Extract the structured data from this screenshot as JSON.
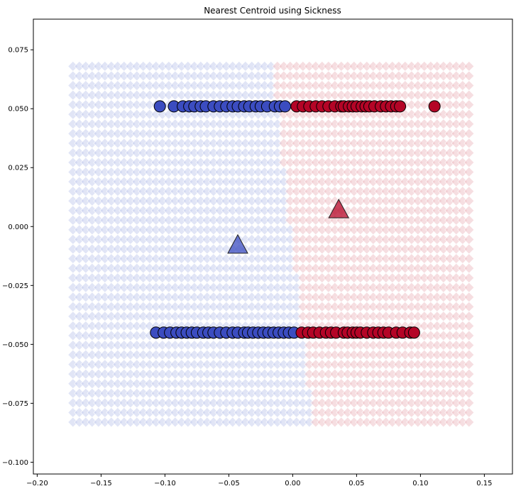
{
  "chart_data": {
    "type": "scatter",
    "title": "Nearest Centroid using Sickness",
    "xlabel": "",
    "ylabel": "",
    "xlim": [
      -0.203,
      0.172
    ],
    "ylim": [
      -0.105,
      0.088
    ],
    "xticks": [
      -0.2,
      -0.15,
      -0.1,
      -0.05,
      0.0,
      0.05,
      0.1,
      0.15
    ],
    "xtick_labels": [
      "−0.20",
      "−0.15",
      "−0.10",
      "−0.05",
      "0.00",
      "0.05",
      "0.10",
      "0.15"
    ],
    "yticks": [
      0.075,
      0.05,
      0.025,
      0.0,
      -0.025,
      -0.05,
      -0.075,
      -0.1
    ],
    "ytick_labels": [
      "0.075",
      "0.050",
      "0.025",
      "0.000",
      "−0.025",
      "−0.050",
      "−0.075",
      "−0.100"
    ],
    "grid": false,
    "colors": {
      "class0": "#3b4cc0",
      "class1": "#b40426",
      "region0": "#c9d0ee",
      "region1": "#eec3c9",
      "edge": "#000000"
    },
    "decision_region": {
      "x_range": [
        -0.172,
        0.141
      ],
      "y_range": [
        -0.083,
        0.068
      ],
      "boundary_top": -0.016,
      "boundary_bottom": 0.016,
      "rows": 38
    },
    "centroids": [
      {
        "class": 0,
        "x": -0.043,
        "y": -0.008
      },
      {
        "class": 1,
        "x": 0.036,
        "y": 0.007
      }
    ],
    "series": [
      {
        "class": 0,
        "y": 0.051,
        "x": [
          -0.104,
          -0.093,
          -0.086,
          -0.081,
          -0.077,
          -0.072,
          -0.068,
          -0.062,
          -0.057,
          -0.052,
          -0.047,
          -0.043,
          -0.038,
          -0.034,
          -0.029,
          -0.025,
          -0.02,
          -0.014,
          -0.01,
          -0.006
        ]
      },
      {
        "class": 1,
        "y": 0.051,
        "x": [
          0.003,
          0.008,
          0.013,
          0.018,
          0.023,
          0.028,
          0.033,
          0.038,
          0.04,
          0.044,
          0.047,
          0.05,
          0.054,
          0.057,
          0.06,
          0.064,
          0.069,
          0.073,
          0.077,
          0.081,
          0.084,
          0.111
        ]
      },
      {
        "class": 0,
        "y": -0.045,
        "x": [
          -0.107,
          -0.101,
          -0.096,
          -0.091,
          -0.087,
          -0.083,
          -0.079,
          -0.075,
          -0.07,
          -0.066,
          -0.062,
          -0.057,
          -0.052,
          -0.047,
          -0.043,
          -0.038,
          -0.035,
          -0.031,
          -0.027,
          -0.023,
          -0.019,
          -0.015,
          -0.011,
          -0.007,
          -0.003,
          0.001
        ]
      },
      {
        "class": 1,
        "y": -0.045,
        "x": [
          0.007,
          0.012,
          0.016,
          0.021,
          0.026,
          0.03,
          0.034,
          0.04,
          0.043,
          0.047,
          0.05,
          0.053,
          0.058,
          0.063,
          0.067,
          0.071,
          0.075,
          0.081,
          0.086,
          0.092,
          0.095
        ]
      }
    ]
  }
}
